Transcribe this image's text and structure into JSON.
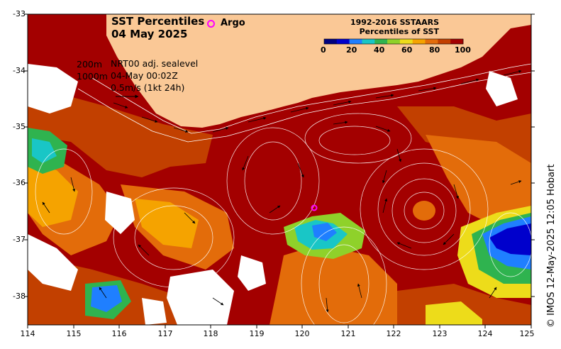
{
  "title": "SST Percentiles",
  "date": "04 May 2025",
  "argo_label": "Argo",
  "legend_notes": {
    "contour_200": "200m",
    "contour_1000": "1000m",
    "sealevel": "NRT00 adj. sealevel",
    "sealevel_time": "04-May 00:02Z",
    "vector_scale": "0.5m/s (1kt 24h)"
  },
  "colorbar": {
    "title_line1": "1992-2016 SSTAARS",
    "title_line2": "Percentiles of SST",
    "tick_labels": [
      "0",
      "20",
      "40",
      "60",
      "80",
      "100"
    ],
    "colors": [
      "#00007f",
      "#0000cc",
      "#1f7fff",
      "#19c6c6",
      "#2fb34f",
      "#8fd12a",
      "#eddc1a",
      "#f5a300",
      "#e36c0a",
      "#c24000",
      "#a30000"
    ]
  },
  "axes": {
    "lon_ticks": [
      "114",
      "115",
      "116",
      "117",
      "118",
      "119",
      "120",
      "121",
      "122",
      "123",
      "124",
      "125"
    ],
    "lat_ticks": [
      "-33",
      "-34",
      "-35",
      "-36",
      "-37",
      "-38"
    ]
  },
  "credit": "© IMOS 12-May-2025 12:05 Hobart",
  "colors": {
    "land": "#fac896",
    "hot": "#a30000",
    "warm": "#c24000",
    "orange": "#e36c0a",
    "no_data": "#ffffff",
    "argo": "#ff00ff"
  }
}
